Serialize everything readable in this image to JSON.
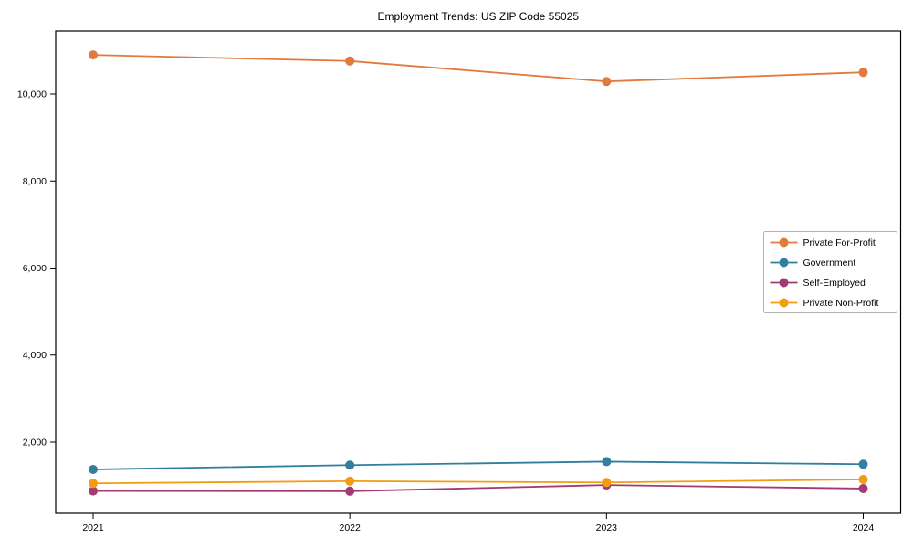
{
  "figure": {
    "background": "#ffffff",
    "axis_color": "#000000",
    "legend_border_color": "#b3b3b3"
  },
  "chart_data": {
    "type": "line",
    "title": "Employment Trends: US ZIP Code 55025",
    "xlabel": "",
    "ylabel": "",
    "x": [
      2021,
      2022,
      2023,
      2024
    ],
    "x_tick_labels": [
      "2021",
      "2022",
      "2023",
      "2024"
    ],
    "yticks": [
      2000,
      4000,
      6000,
      8000,
      10000
    ],
    "y_tick_labels": [
      "2,000",
      "4,000",
      "6,000",
      "8,000",
      "10,000"
    ],
    "ylim": [
      362,
      11449
    ],
    "grid": false,
    "marker": "circle",
    "legend_position": "center-right",
    "series": [
      {
        "name": "Private For-Profit",
        "color": "#E2793D",
        "values": [
          10900,
          10760,
          10290,
          10500
        ]
      },
      {
        "name": "Government",
        "color": "#317F9E",
        "values": [
          1370,
          1470,
          1550,
          1490
        ]
      },
      {
        "name": "Self-Employed",
        "color": "#A23B72",
        "values": [
          875,
          870,
          1010,
          930
        ]
      },
      {
        "name": "Private Non-Profit",
        "color": "#F39C12",
        "values": [
          1050,
          1100,
          1070,
          1140
        ]
      }
    ]
  }
}
